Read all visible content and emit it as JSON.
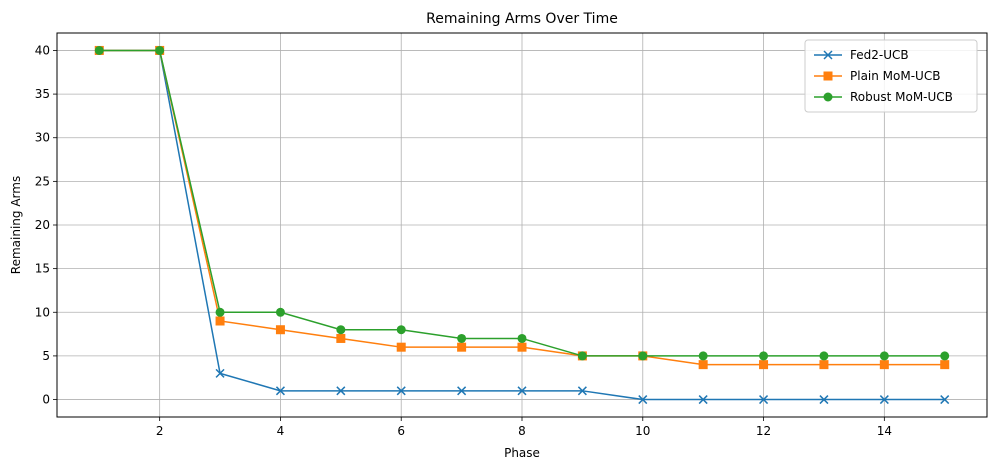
{
  "chart_data": {
    "type": "line",
    "title": "Remaining Arms Over Time",
    "xlabel": "Phase",
    "ylabel": "Remaining Arms",
    "xlim": [
      0.3,
      15.7
    ],
    "ylim": [
      -2,
      42
    ],
    "xticks": [
      2,
      4,
      6,
      8,
      10,
      12,
      14
    ],
    "yticks": [
      0,
      5,
      10,
      15,
      20,
      25,
      30,
      35,
      40
    ],
    "grid": true,
    "legend_position": "top-right",
    "x": [
      1,
      2,
      3,
      4,
      5,
      6,
      7,
      8,
      9,
      10,
      11,
      12,
      13,
      14,
      15
    ],
    "series": [
      {
        "name": "Fed2-UCB",
        "color": "#1f77b4",
        "marker": "x",
        "values": [
          40,
          40,
          3,
          1,
          1,
          1,
          1,
          1,
          1,
          0,
          0,
          0,
          0,
          0,
          0
        ]
      },
      {
        "name": "Plain MoM-UCB",
        "color": "#ff7f0e",
        "marker": "square",
        "values": [
          40,
          40,
          9,
          8,
          7,
          6,
          6,
          6,
          5,
          5,
          4,
          4,
          4,
          4,
          4
        ]
      },
      {
        "name": "Robust MoM-UCB",
        "color": "#2ca02c",
        "marker": "circle",
        "values": [
          40,
          40,
          10,
          10,
          8,
          8,
          7,
          7,
          5,
          5,
          5,
          5,
          5,
          5,
          5
        ]
      }
    ]
  }
}
